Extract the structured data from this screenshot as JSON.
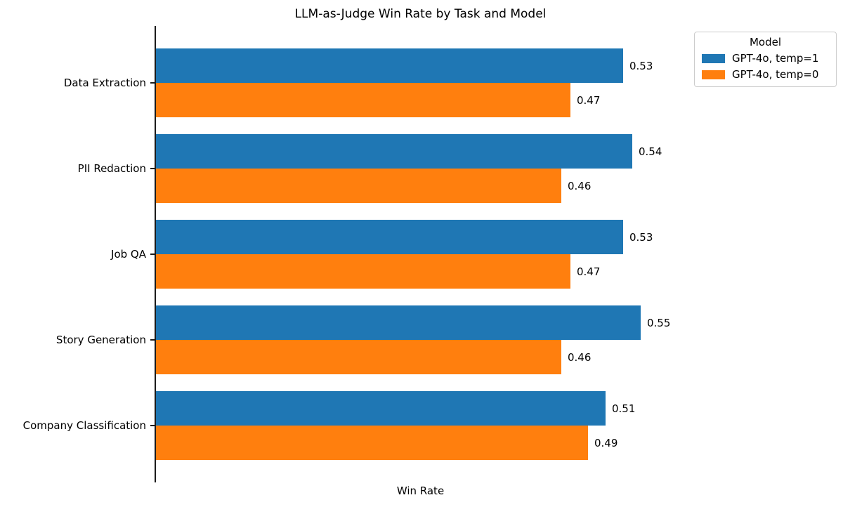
{
  "chart_data": {
    "type": "bar",
    "orientation": "horizontal",
    "title": "LLM-as-Judge Win Rate by Task and Model",
    "xlabel": "Win Rate",
    "ylabel": "",
    "categories": [
      "Data Extraction",
      "PII Redaction",
      "Job QA",
      "Story Generation",
      "Company Classification"
    ],
    "series": [
      {
        "name": "GPT-4o, temp=1",
        "color": "#1f77b4",
        "values": [
          0.53,
          0.54,
          0.53,
          0.55,
          0.51
        ]
      },
      {
        "name": "GPT-4o, temp=0",
        "color": "#ff7f0e",
        "values": [
          0.47,
          0.46,
          0.47,
          0.46,
          0.49
        ]
      }
    ],
    "xlim": [
      0,
      0.6
    ],
    "grid": false,
    "value_labels": true,
    "legend_title": "Model",
    "legend_position": "upper-right-outside"
  }
}
